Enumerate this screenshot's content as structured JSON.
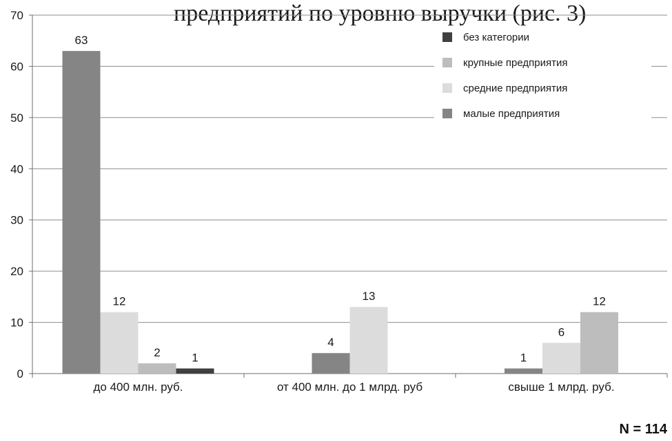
{
  "header_fragment": "предприятий по уровню выручки (рис. 3)",
  "note": "N = 114",
  "chart_data": {
    "type": "bar",
    "categories": [
      "до 400 млн. руб.",
      "от 400 млн. до 1 млрд. руб",
      "свыше 1 млрд. руб."
    ],
    "series": [
      {
        "name": "малые предприятия",
        "color": "#858585",
        "values": [
          63,
          4,
          1
        ]
      },
      {
        "name": "средние предприятия",
        "color": "#dcdcdc",
        "values": [
          12,
          13,
          6
        ]
      },
      {
        "name": "крупные предприятия",
        "color": "#bdbdbd",
        "values": [
          2,
          null,
          12
        ]
      },
      {
        "name": "без категории",
        "color": "#404040",
        "values": [
          1,
          null,
          null
        ]
      }
    ],
    "legend_order": [
      "без категории",
      "крупные предприятия",
      "средние предприятия",
      "малые предприятия"
    ],
    "yticks": [
      0,
      10,
      20,
      30,
      40,
      50,
      60,
      70
    ],
    "ylim": [
      0,
      70
    ],
    "grid": true,
    "legend_position": "top-right",
    "title": "",
    "xlabel": "",
    "ylabel": ""
  }
}
